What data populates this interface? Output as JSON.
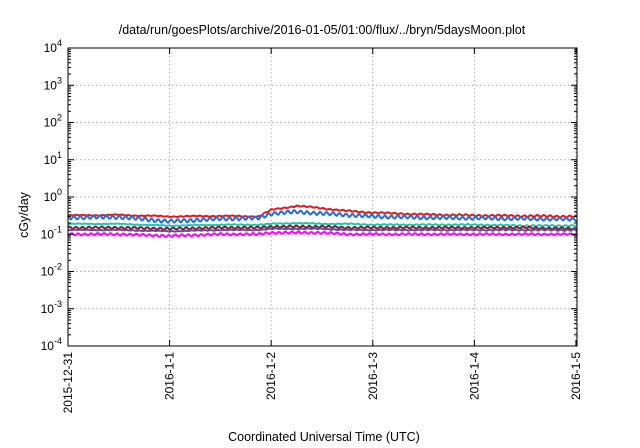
{
  "chart_data": {
    "type": "line",
    "title": "/data/run/goesPlots/archive/2016-01-05/01:00/flux/../bryn/5daysMoon.plot",
    "xlabel": "Coordinated Universal Time (UTC)",
    "ylabel": "cGy/day",
    "yscale": "log",
    "ylim": [
      0.0001,
      10000
    ],
    "xlim": [
      "2015-12-31",
      "2016-01-05 00:15"
    ],
    "grid": true,
    "x_ticks": [
      {
        "value": "2015-12-31",
        "label": "2015-12-31"
      },
      {
        "value": "2016-01-01",
        "label": "2016-1-1"
      },
      {
        "value": "2016-01-02",
        "label": "2016-1-2"
      },
      {
        "value": "2016-01-03",
        "label": "2016-1-3"
      },
      {
        "value": "2016-01-04",
        "label": "2016-1-4"
      },
      {
        "value": "2016-01-05",
        "label": "2016-1-5"
      }
    ],
    "y_ticks": [
      {
        "value": 0.0001,
        "base": "10",
        "exp": "-4"
      },
      {
        "value": 0.001,
        "base": "10",
        "exp": "-3"
      },
      {
        "value": 0.01,
        "base": "10",
        "exp": "-2"
      },
      {
        "value": 0.1,
        "base": "10",
        "exp": "-1"
      },
      {
        "value": 1,
        "base": "10",
        "exp": "0"
      },
      {
        "value": 10,
        "base": "10",
        "exp": "1"
      },
      {
        "value": 100,
        "base": "10",
        "exp": "2"
      },
      {
        "value": 1000,
        "base": "10",
        "exp": "3"
      },
      {
        "value": 10000,
        "base": "10",
        "exp": "4"
      }
    ],
    "series": [
      {
        "color": "#e41a1c",
        "x": [
          "2015-12-31 00:00",
          "2015-12-31 12:00",
          "2016-01-01 00:00",
          "2016-01-01 12:00",
          "2016-01-01 21:00",
          "2016-01-02 00:00",
          "2016-01-02 06:00",
          "2016-01-02 12:00",
          "2016-01-02 18:00",
          "2016-01-03 00:00",
          "2016-01-03 12:00",
          "2016-01-04 00:00",
          "2016-01-04 12:00",
          "2016-01-05 00:00",
          "2016-01-05 00:15"
        ],
        "values": [
          0.32,
          0.33,
          0.3,
          0.31,
          0.3,
          0.45,
          0.58,
          0.5,
          0.42,
          0.38,
          0.34,
          0.32,
          0.31,
          0.3,
          0.29
        ]
      },
      {
        "color": "#1f6fe0",
        "x": [
          "2015-12-31 00:00",
          "2015-12-31 12:00",
          "2016-01-01 00:00",
          "2016-01-01 12:00",
          "2016-01-01 21:00",
          "2016-01-02 00:00",
          "2016-01-02 06:00",
          "2016-01-02 12:00",
          "2016-01-02 18:00",
          "2016-01-03 00:00",
          "2016-01-03 12:00",
          "2016-01-04 00:00",
          "2016-01-04 12:00",
          "2016-01-05 00:00",
          "2016-01-05 00:15"
        ],
        "values": [
          0.28,
          0.29,
          0.22,
          0.26,
          0.27,
          0.36,
          0.4,
          0.36,
          0.33,
          0.3,
          0.28,
          0.27,
          0.26,
          0.25,
          0.24
        ]
      },
      {
        "color": "#1fc8a8",
        "x": [
          "2015-12-31 00:00",
          "2015-12-31 12:00",
          "2016-01-01 00:00",
          "2016-01-01 12:00",
          "2016-01-01 21:00",
          "2016-01-02 00:00",
          "2016-01-02 06:00",
          "2016-01-02 12:00",
          "2016-01-02 18:00",
          "2016-01-03 00:00",
          "2016-01-03 12:00",
          "2016-01-04 00:00",
          "2016-01-04 12:00",
          "2016-01-05 00:00",
          "2016-01-05 00:15"
        ],
        "values": [
          0.19,
          0.19,
          0.17,
          0.18,
          0.18,
          0.19,
          0.2,
          0.19,
          0.19,
          0.18,
          0.18,
          0.18,
          0.17,
          0.17,
          0.17
        ]
      },
      {
        "color": "#8b1a3a",
        "x": [
          "2015-12-31 00:00",
          "2015-12-31 12:00",
          "2016-01-01 00:00",
          "2016-01-01 12:00",
          "2016-01-01 21:00",
          "2016-01-02 00:00",
          "2016-01-02 06:00",
          "2016-01-02 12:00",
          "2016-01-02 18:00",
          "2016-01-03 00:00",
          "2016-01-03 12:00",
          "2016-01-04 00:00",
          "2016-01-04 12:00",
          "2016-01-05 00:00",
          "2016-01-05 00:15"
        ],
        "values": [
          0.15,
          0.15,
          0.14,
          0.15,
          0.15,
          0.16,
          0.16,
          0.16,
          0.15,
          0.15,
          0.15,
          0.15,
          0.15,
          0.14,
          0.14
        ]
      },
      {
        "color": "#5a50a0",
        "x": [
          "2015-12-31 00:00",
          "2015-12-31 12:00",
          "2016-01-01 00:00",
          "2016-01-01 12:00",
          "2016-01-01 21:00",
          "2016-01-02 00:00",
          "2016-01-02 06:00",
          "2016-01-02 12:00",
          "2016-01-02 18:00",
          "2016-01-03 00:00",
          "2016-01-03 12:00",
          "2016-01-04 00:00",
          "2016-01-04 12:00",
          "2016-01-05 00:00",
          "2016-01-05 00:15"
        ],
        "values": [
          0.13,
          0.13,
          0.12,
          0.13,
          0.13,
          0.14,
          0.14,
          0.14,
          0.13,
          0.13,
          0.13,
          0.13,
          0.13,
          0.13,
          0.12
        ]
      },
      {
        "color": "#ff00ff",
        "x": [
          "2015-12-31 00:00",
          "2015-12-31 12:00",
          "2016-01-01 00:00",
          "2016-01-01 12:00",
          "2016-01-01 21:00",
          "2016-01-02 00:00",
          "2016-01-02 06:00",
          "2016-01-02 12:00",
          "2016-01-02 18:00",
          "2016-01-03 00:00",
          "2016-01-03 12:00",
          "2016-01-04 00:00",
          "2016-01-04 12:00",
          "2016-01-05 00:00",
          "2016-01-05 00:15"
        ],
        "values": [
          0.1,
          0.1,
          0.09,
          0.1,
          0.1,
          0.11,
          0.11,
          0.11,
          0.1,
          0.1,
          0.1,
          0.1,
          0.1,
          0.1,
          0.1
        ]
      }
    ]
  }
}
